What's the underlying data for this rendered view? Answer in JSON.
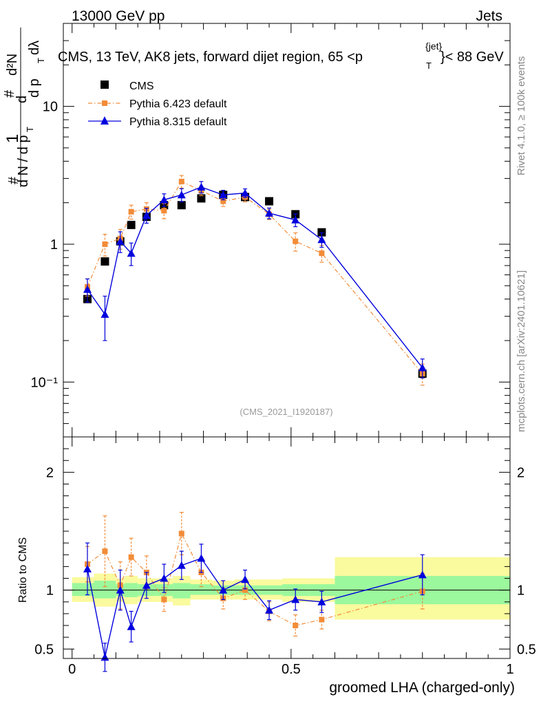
{
  "header": {
    "left": "13000 GeV pp",
    "right": "Jets",
    "title_main": "CMS, 13 TeV, AK8 jets, forward dijet region, 65 <p",
    "title_sup": "{jet}",
    "title_sub": "T",
    "title_tail": "}< 88 GeV",
    "side_rivet": "Rivet 4.1.0, ≥ 100k events",
    "side_mcplots": "mcplots.cern.ch [arXiv:2401.10621]",
    "watermark": "(CMS_2021_I1920187)",
    "ylabel_main_lines": [
      "#",
      "1",
      "d N / d p",
      "T",
      "#",
      "d",
      "d p",
      "T",
      "dλ",
      "d²N"
    ],
    "ylabel_ratio": "Ratio to CMS",
    "xlabel": "groomed LHA (charged-only)"
  },
  "legend": {
    "position": "top-left",
    "entries": [
      {
        "label": "CMS",
        "color": "#000000",
        "marker": "square"
      },
      {
        "label": "Pythia 6.423 default",
        "color": "#f28c38",
        "marker": "square-small",
        "line": "dashdot"
      },
      {
        "label": "Pythia 8.315 default",
        "color": "#0000dd",
        "marker": "triangle",
        "line": "solid"
      }
    ]
  },
  "chart_data": [
    {
      "type": "scatter",
      "title": "CMS, 13 TeV, AK8 jets, forward dijet region, 65 < pT(jet) < 88 GeV",
      "xlabel": "groomed LHA (charged-only)",
      "ylabel": "1/dN/dpT d2N/dpT dlambda",
      "yscale": "log",
      "xlim": [
        -0.02,
        1.0
      ],
      "ylim": [
        0.04,
        40
      ],
      "yticks": [
        0.1,
        1,
        10
      ],
      "ytick_labels": [
        "10⁻¹",
        "1",
        "10"
      ],
      "series": [
        {
          "name": "CMS",
          "color": "#000000",
          "x": [
            0.035,
            0.075,
            0.11,
            0.135,
            0.17,
            0.21,
            0.25,
            0.295,
            0.345,
            0.395,
            0.45,
            0.51,
            0.57,
            0.8
          ],
          "y": [
            0.4,
            0.75,
            1.05,
            1.38,
            1.58,
            1.92,
            1.92,
            2.15,
            2.28,
            2.2,
            2.05,
            1.65,
            1.22,
            0.115
          ]
        },
        {
          "name": "Pythia 6.423 default",
          "color": "#f28c38",
          "x": [
            0.035,
            0.075,
            0.11,
            0.135,
            0.17,
            0.21,
            0.25,
            0.295,
            0.345,
            0.395,
            0.45,
            0.51,
            0.57,
            0.8
          ],
          "y": [
            0.49,
            1.0,
            1.1,
            1.72,
            1.8,
            1.75,
            2.85,
            2.45,
            2.05,
            2.2,
            1.65,
            1.05,
            0.86,
            0.115
          ],
          "err": [
            0.07,
            0.18,
            0.18,
            0.2,
            0.2,
            0.22,
            0.3,
            0.2,
            0.17,
            0.17,
            0.14,
            0.16,
            0.12,
            0.02
          ]
        },
        {
          "name": "Pythia 8.315 default",
          "color": "#0000dd",
          "x": [
            0.035,
            0.075,
            0.11,
            0.135,
            0.17,
            0.21,
            0.25,
            0.295,
            0.345,
            0.395,
            0.45,
            0.51,
            0.57,
            0.8
          ],
          "y": [
            0.47,
            0.31,
            1.05,
            0.86,
            1.62,
            2.1,
            2.28,
            2.6,
            2.28,
            2.35,
            1.68,
            1.5,
            1.08,
            0.127
          ],
          "err": [
            0.09,
            0.11,
            0.18,
            0.16,
            0.2,
            0.22,
            0.25,
            0.25,
            0.18,
            0.17,
            0.15,
            0.16,
            0.13,
            0.02
          ]
        }
      ]
    },
    {
      "type": "scatter",
      "title": "Ratio to CMS",
      "xlabel": "groomed LHA (charged-only)",
      "ylabel": "Ratio to CMS",
      "xlim": [
        -0.02,
        1.0
      ],
      "ylim": [
        0.42,
        2.3
      ],
      "yticks": [
        0.5,
        1,
        2
      ],
      "ytick_labels": [
        "0.5",
        "1",
        "2"
      ],
      "xticks": [
        0,
        0.5,
        1
      ],
      "xtick_labels": [
        "0",
        "0.5",
        "1"
      ],
      "bands": {
        "edges": [
          0.0,
          0.05,
          0.1,
          0.12,
          0.15,
          0.19,
          0.23,
          0.27,
          0.32,
          0.37,
          0.42,
          0.48,
          0.54,
          0.6,
          1.0
        ],
        "inner": [
          [
            0.95,
            1.06
          ],
          [
            0.93,
            1.08
          ],
          [
            0.95,
            1.05
          ],
          [
            0.94,
            1.06
          ],
          [
            0.95,
            1.05
          ],
          [
            0.95,
            1.05
          ],
          [
            0.93,
            1.06
          ],
          [
            0.96,
            1.05
          ],
          [
            0.96,
            1.04
          ],
          [
            0.96,
            1.04
          ],
          [
            0.96,
            1.04
          ],
          [
            0.95,
            1.05
          ],
          [
            0.95,
            1.05
          ],
          [
            0.88,
            1.12
          ]
        ],
        "outer": [
          [
            0.9,
            1.11
          ],
          [
            0.86,
            1.14
          ],
          [
            0.9,
            1.1
          ],
          [
            0.88,
            1.12
          ],
          [
            0.9,
            1.1
          ],
          [
            0.9,
            1.1
          ],
          [
            0.87,
            1.12
          ],
          [
            0.92,
            1.09
          ],
          [
            0.92,
            1.08
          ],
          [
            0.92,
            1.09
          ],
          [
            0.92,
            1.09
          ],
          [
            0.9,
            1.1
          ],
          [
            0.9,
            1.1
          ],
          [
            0.75,
            1.28
          ]
        ],
        "inner_color": "#9cf89c",
        "outer_color": "#fafa9e"
      },
      "series": [
        {
          "name": "Pythia 6.423 default",
          "color": "#f28c38",
          "x": [
            0.035,
            0.075,
            0.11,
            0.135,
            0.17,
            0.21,
            0.25,
            0.295,
            0.345,
            0.395,
            0.45,
            0.51,
            0.57,
            0.8
          ],
          "y": [
            1.22,
            1.33,
            1.04,
            1.28,
            1.15,
            0.92,
            1.48,
            1.15,
            0.93,
            1.0,
            0.82,
            0.7,
            0.75,
            0.99
          ],
          "err": [
            0.15,
            0.3,
            0.2,
            0.16,
            0.14,
            0.1,
            0.18,
            0.12,
            0.09,
            0.08,
            0.08,
            0.09,
            0.08,
            0.15
          ]
        },
        {
          "name": "Pythia 8.315 default",
          "color": "#0000dd",
          "x": [
            0.035,
            0.075,
            0.11,
            0.135,
            0.17,
            0.21,
            0.25,
            0.295,
            0.345,
            0.395,
            0.45,
            0.51,
            0.57,
            0.8
          ],
          "y": [
            1.18,
            0.43,
            1.0,
            0.69,
            1.04,
            1.1,
            1.21,
            1.27,
            1.0,
            1.09,
            0.83,
            0.92,
            0.9,
            1.13
          ],
          "err": [
            0.22,
            0.12,
            0.17,
            0.13,
            0.11,
            0.12,
            0.12,
            0.12,
            0.08,
            0.08,
            0.08,
            0.09,
            0.09,
            0.17
          ]
        }
      ]
    }
  ]
}
